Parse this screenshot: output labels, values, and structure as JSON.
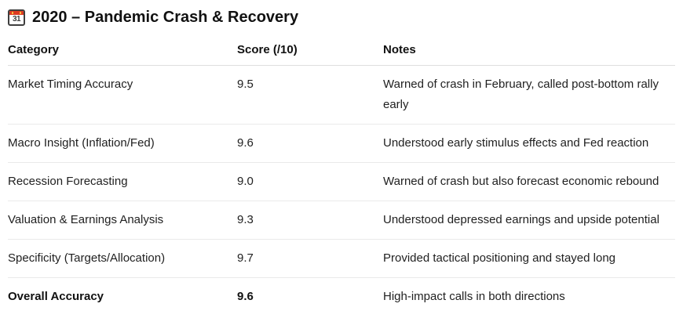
{
  "header": {
    "title": "2020 – Pandemic Crash & Recovery",
    "calendar_icon": {
      "day": "31"
    }
  },
  "table": {
    "columns": [
      "Category",
      "Score (/10)",
      "Notes"
    ],
    "rows": [
      {
        "category": "Market Timing Accuracy",
        "score": "9.5",
        "notes": "Warned of crash in February, called post-bottom rally early",
        "emphasis": false
      },
      {
        "category": "Macro Insight (Inflation/Fed)",
        "score": "9.6",
        "notes": "Understood early stimulus effects and Fed reaction",
        "emphasis": false
      },
      {
        "category": "Recession Forecasting",
        "score": "9.0",
        "notes": "Warned of crash but also forecast economic rebound",
        "emphasis": false
      },
      {
        "category": "Valuation & Earnings Analysis",
        "score": "9.3",
        "notes": "Understood depressed earnings and upside potential",
        "emphasis": false
      },
      {
        "category": "Specificity (Targets/Allocation)",
        "score": "9.7",
        "notes": "Provided tactical positioning and stayed long",
        "emphasis": false
      },
      {
        "category": "Overall Accuracy",
        "score": "9.6",
        "notes": "High-impact calls in both directions",
        "emphasis": true
      }
    ]
  },
  "colors": {
    "text": "#212121",
    "title_text": "#111111",
    "calendar_red": "#dc3a21",
    "calendar_ring": "#f6b73c",
    "calendar_frame": "#3f3f3f",
    "header_border": "#dedede",
    "row_divider": "#eaeaea",
    "bg": "#ffffff"
  }
}
